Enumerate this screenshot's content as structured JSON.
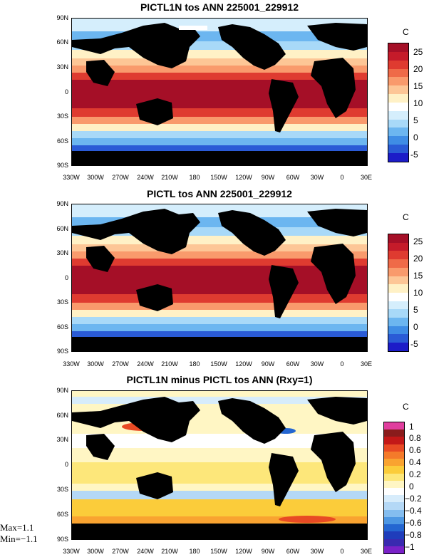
{
  "panels": [
    {
      "title": "PICTL1N tos ANN 225001_229912",
      "unit": "C",
      "colorbar_labels": [
        "25",
        "20",
        "15",
        "10",
        "5",
        "0",
        "-5"
      ],
      "colors": [
        "#a50f27",
        "#c51b2a",
        "#df3b30",
        "#ef6a48",
        "#f99a6c",
        "#fdc696",
        "#fff1c6",
        "#ffffff",
        "#d5eefc",
        "#a8d9f8",
        "#6cb6f0",
        "#3f8de5",
        "#2a5bd6",
        "#1c1cc8"
      ]
    },
    {
      "title": "PICTL tos ANN 225001_229912",
      "unit": "C",
      "colorbar_labels": [
        "25",
        "20",
        "15",
        "10",
        "5",
        "0",
        "-5"
      ],
      "colors": [
        "#a50f27",
        "#c51b2a",
        "#df3b30",
        "#ef6a48",
        "#f99a6c",
        "#fdc696",
        "#fff1c6",
        "#ffffff",
        "#d5eefc",
        "#a8d9f8",
        "#6cb6f0",
        "#3f8de5",
        "#2a5bd6",
        "#1c1cc8"
      ]
    },
    {
      "title": "PICTL1N minus PICTL tos ANN (Rxy=1)",
      "unit": "C",
      "colorbar_labels": [
        "1",
        "0.8",
        "0.6",
        "0.4",
        "0.2",
        "0",
        "−0.2",
        "−0.4",
        "−0.6",
        "−0.8",
        "−1"
      ],
      "colors": [
        "#e03e9e",
        "#8a1c1c",
        "#c31818",
        "#e84a24",
        "#f47a2a",
        "#f9a330",
        "#fbcc3a",
        "#fde77a",
        "#fff6c4",
        "#ffffff",
        "#d7ecfb",
        "#b4d8f6",
        "#84bdef",
        "#4d97e3",
        "#2466d1",
        "#1f3dbb",
        "#3a2ab0",
        "#7a22c8"
      ]
    }
  ],
  "lat_labels": [
    "90N",
    "60N",
    "30N",
    "0",
    "30S",
    "60S",
    "90S"
  ],
  "lon_labels": [
    "330W",
    "300W",
    "270W",
    "240W",
    "210W",
    "180",
    "150W",
    "120W",
    "90W",
    "60W",
    "30W",
    "0",
    "30E"
  ],
  "stats": {
    "max": "Max=1.1",
    "min": "Min=−1.1"
  }
}
